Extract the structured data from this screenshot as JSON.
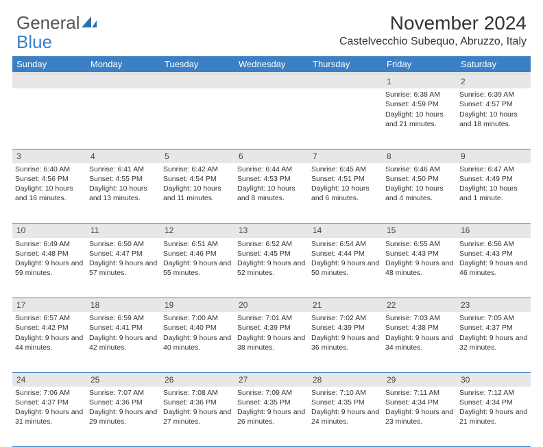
{
  "logo": {
    "text1": "General",
    "text2": "Blue"
  },
  "title": "November 2024",
  "location": "Castelvecchio Subequo, Abruzzo, Italy",
  "colors": {
    "header_bg": "#3b7fc4",
    "daynum_bg": "#e7e7e7",
    "row_divider": "#3b7fc4",
    "text": "#333333",
    "logo_gray": "#555555"
  },
  "day_headers": [
    "Sunday",
    "Monday",
    "Tuesday",
    "Wednesday",
    "Thursday",
    "Friday",
    "Saturday"
  ],
  "weeks": [
    [
      {
        "n": "",
        "sunrise": "",
        "sunset": "",
        "daylight": ""
      },
      {
        "n": "",
        "sunrise": "",
        "sunset": "",
        "daylight": ""
      },
      {
        "n": "",
        "sunrise": "",
        "sunset": "",
        "daylight": ""
      },
      {
        "n": "",
        "sunrise": "",
        "sunset": "",
        "daylight": ""
      },
      {
        "n": "",
        "sunrise": "",
        "sunset": "",
        "daylight": ""
      },
      {
        "n": "1",
        "sunrise": "Sunrise: 6:38 AM",
        "sunset": "Sunset: 4:59 PM",
        "daylight": "Daylight: 10 hours and 21 minutes."
      },
      {
        "n": "2",
        "sunrise": "Sunrise: 6:39 AM",
        "sunset": "Sunset: 4:57 PM",
        "daylight": "Daylight: 10 hours and 18 minutes."
      }
    ],
    [
      {
        "n": "3",
        "sunrise": "Sunrise: 6:40 AM",
        "sunset": "Sunset: 4:56 PM",
        "daylight": "Daylight: 10 hours and 16 minutes."
      },
      {
        "n": "4",
        "sunrise": "Sunrise: 6:41 AM",
        "sunset": "Sunset: 4:55 PM",
        "daylight": "Daylight: 10 hours and 13 minutes."
      },
      {
        "n": "5",
        "sunrise": "Sunrise: 6:42 AM",
        "sunset": "Sunset: 4:54 PM",
        "daylight": "Daylight: 10 hours and 11 minutes."
      },
      {
        "n": "6",
        "sunrise": "Sunrise: 6:44 AM",
        "sunset": "Sunset: 4:53 PM",
        "daylight": "Daylight: 10 hours and 8 minutes."
      },
      {
        "n": "7",
        "sunrise": "Sunrise: 6:45 AM",
        "sunset": "Sunset: 4:51 PM",
        "daylight": "Daylight: 10 hours and 6 minutes."
      },
      {
        "n": "8",
        "sunrise": "Sunrise: 6:46 AM",
        "sunset": "Sunset: 4:50 PM",
        "daylight": "Daylight: 10 hours and 4 minutes."
      },
      {
        "n": "9",
        "sunrise": "Sunrise: 6:47 AM",
        "sunset": "Sunset: 4:49 PM",
        "daylight": "Daylight: 10 hours and 1 minute."
      }
    ],
    [
      {
        "n": "10",
        "sunrise": "Sunrise: 6:49 AM",
        "sunset": "Sunset: 4:48 PM",
        "daylight": "Daylight: 9 hours and 59 minutes."
      },
      {
        "n": "11",
        "sunrise": "Sunrise: 6:50 AM",
        "sunset": "Sunset: 4:47 PM",
        "daylight": "Daylight: 9 hours and 57 minutes."
      },
      {
        "n": "12",
        "sunrise": "Sunrise: 6:51 AM",
        "sunset": "Sunset: 4:46 PM",
        "daylight": "Daylight: 9 hours and 55 minutes."
      },
      {
        "n": "13",
        "sunrise": "Sunrise: 6:52 AM",
        "sunset": "Sunset: 4:45 PM",
        "daylight": "Daylight: 9 hours and 52 minutes."
      },
      {
        "n": "14",
        "sunrise": "Sunrise: 6:54 AM",
        "sunset": "Sunset: 4:44 PM",
        "daylight": "Daylight: 9 hours and 50 minutes."
      },
      {
        "n": "15",
        "sunrise": "Sunrise: 6:55 AM",
        "sunset": "Sunset: 4:43 PM",
        "daylight": "Daylight: 9 hours and 48 minutes."
      },
      {
        "n": "16",
        "sunrise": "Sunrise: 6:56 AM",
        "sunset": "Sunset: 4:43 PM",
        "daylight": "Daylight: 9 hours and 46 minutes."
      }
    ],
    [
      {
        "n": "17",
        "sunrise": "Sunrise: 6:57 AM",
        "sunset": "Sunset: 4:42 PM",
        "daylight": "Daylight: 9 hours and 44 minutes."
      },
      {
        "n": "18",
        "sunrise": "Sunrise: 6:59 AM",
        "sunset": "Sunset: 4:41 PM",
        "daylight": "Daylight: 9 hours and 42 minutes."
      },
      {
        "n": "19",
        "sunrise": "Sunrise: 7:00 AM",
        "sunset": "Sunset: 4:40 PM",
        "daylight": "Daylight: 9 hours and 40 minutes."
      },
      {
        "n": "20",
        "sunrise": "Sunrise: 7:01 AM",
        "sunset": "Sunset: 4:39 PM",
        "daylight": "Daylight: 9 hours and 38 minutes."
      },
      {
        "n": "21",
        "sunrise": "Sunrise: 7:02 AM",
        "sunset": "Sunset: 4:39 PM",
        "daylight": "Daylight: 9 hours and 36 minutes."
      },
      {
        "n": "22",
        "sunrise": "Sunrise: 7:03 AM",
        "sunset": "Sunset: 4:38 PM",
        "daylight": "Daylight: 9 hours and 34 minutes."
      },
      {
        "n": "23",
        "sunrise": "Sunrise: 7:05 AM",
        "sunset": "Sunset: 4:37 PM",
        "daylight": "Daylight: 9 hours and 32 minutes."
      }
    ],
    [
      {
        "n": "24",
        "sunrise": "Sunrise: 7:06 AM",
        "sunset": "Sunset: 4:37 PM",
        "daylight": "Daylight: 9 hours and 31 minutes."
      },
      {
        "n": "25",
        "sunrise": "Sunrise: 7:07 AM",
        "sunset": "Sunset: 4:36 PM",
        "daylight": "Daylight: 9 hours and 29 minutes."
      },
      {
        "n": "26",
        "sunrise": "Sunrise: 7:08 AM",
        "sunset": "Sunset: 4:36 PM",
        "daylight": "Daylight: 9 hours and 27 minutes."
      },
      {
        "n": "27",
        "sunrise": "Sunrise: 7:09 AM",
        "sunset": "Sunset: 4:35 PM",
        "daylight": "Daylight: 9 hours and 26 minutes."
      },
      {
        "n": "28",
        "sunrise": "Sunrise: 7:10 AM",
        "sunset": "Sunset: 4:35 PM",
        "daylight": "Daylight: 9 hours and 24 minutes."
      },
      {
        "n": "29",
        "sunrise": "Sunrise: 7:11 AM",
        "sunset": "Sunset: 4:34 PM",
        "daylight": "Daylight: 9 hours and 23 minutes."
      },
      {
        "n": "30",
        "sunrise": "Sunrise: 7:12 AM",
        "sunset": "Sunset: 4:34 PM",
        "daylight": "Daylight: 9 hours and 21 minutes."
      }
    ]
  ]
}
